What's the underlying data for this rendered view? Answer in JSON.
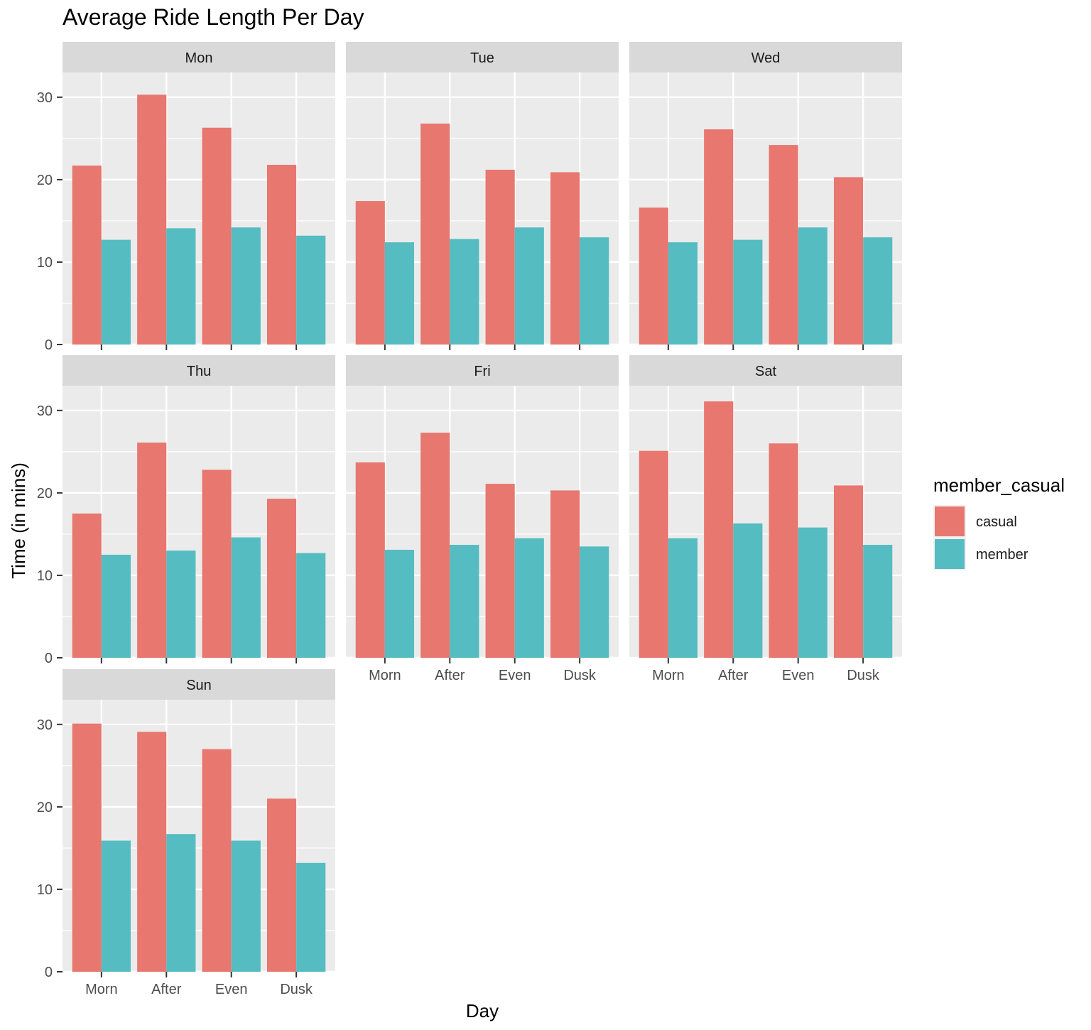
{
  "chart_data": {
    "type": "bar",
    "title": "Average Ride Length Per Day",
    "xlabel": "Day",
    "ylabel": "Time (in mins)",
    "ylim": [
      0,
      33
    ],
    "yticks": [
      0,
      10,
      20,
      30
    ],
    "categories": [
      "Morn",
      "After",
      "Even",
      "Dusk"
    ],
    "legend": {
      "title": "member_casual",
      "position": "right",
      "items": [
        {
          "name": "casual",
          "color": "#E7776F"
        },
        {
          "name": "member",
          "color": "#55BCC1"
        }
      ]
    },
    "grid": true,
    "panels": [
      {
        "label": "Mon",
        "series": [
          {
            "name": "casual",
            "values": [
              21.7,
              30.3,
              26.3,
              21.8
            ]
          },
          {
            "name": "member",
            "values": [
              12.7,
              14.1,
              14.2,
              13.2
            ]
          }
        ]
      },
      {
        "label": "Tue",
        "series": [
          {
            "name": "casual",
            "values": [
              17.4,
              26.8,
              21.2,
              20.9
            ]
          },
          {
            "name": "member",
            "values": [
              12.4,
              12.8,
              14.2,
              13.0
            ]
          }
        ]
      },
      {
        "label": "Wed",
        "series": [
          {
            "name": "casual",
            "values": [
              16.6,
              26.1,
              24.2,
              20.3
            ]
          },
          {
            "name": "member",
            "values": [
              12.4,
              12.7,
              14.2,
              13.0
            ]
          }
        ]
      },
      {
        "label": "Thu",
        "series": [
          {
            "name": "casual",
            "values": [
              17.5,
              26.1,
              22.8,
              19.3
            ]
          },
          {
            "name": "member",
            "values": [
              12.5,
              13.0,
              14.6,
              12.7
            ]
          }
        ]
      },
      {
        "label": "Fri",
        "series": [
          {
            "name": "casual",
            "values": [
              23.7,
              27.3,
              21.1,
              20.3
            ]
          },
          {
            "name": "member",
            "values": [
              13.1,
              13.7,
              14.5,
              13.5
            ]
          }
        ]
      },
      {
        "label": "Sat",
        "series": [
          {
            "name": "casual",
            "values": [
              25.1,
              31.1,
              26.0,
              20.9
            ]
          },
          {
            "name": "member",
            "values": [
              14.5,
              16.3,
              15.8,
              13.7
            ]
          }
        ]
      },
      {
        "label": "Sun",
        "series": [
          {
            "name": "casual",
            "values": [
              30.1,
              29.1,
              27.0,
              21.0
            ]
          },
          {
            "name": "member",
            "values": [
              15.9,
              16.7,
              15.9,
              13.2
            ]
          }
        ]
      }
    ]
  }
}
